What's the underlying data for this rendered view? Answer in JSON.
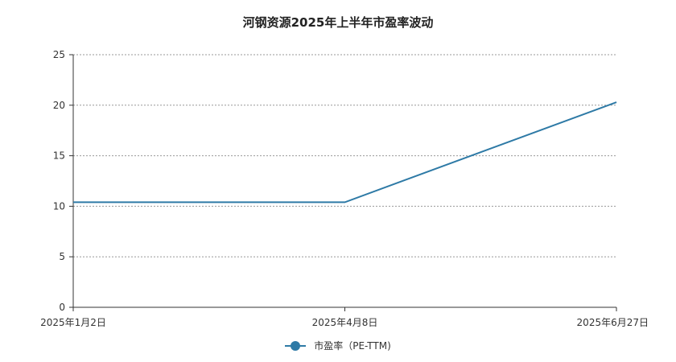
{
  "chart_data": {
    "type": "line",
    "title": "河钢资源2025年上半年市盈率波动",
    "x": [
      "2025年1月2日",
      "2025年4月8日",
      "2025年6月27日"
    ],
    "series": [
      {
        "name": "市盈率（PE-TTM)",
        "values": [
          10.4,
          10.4,
          20.3
        ]
      }
    ],
    "yticks": [
      0,
      5,
      10,
      15,
      20,
      25
    ],
    "ylim": [
      0,
      25
    ],
    "grid": true,
    "legend": "bottom",
    "colors": {
      "series": "#2e7aa6",
      "grid": "#999999",
      "axis": "#333333"
    }
  }
}
